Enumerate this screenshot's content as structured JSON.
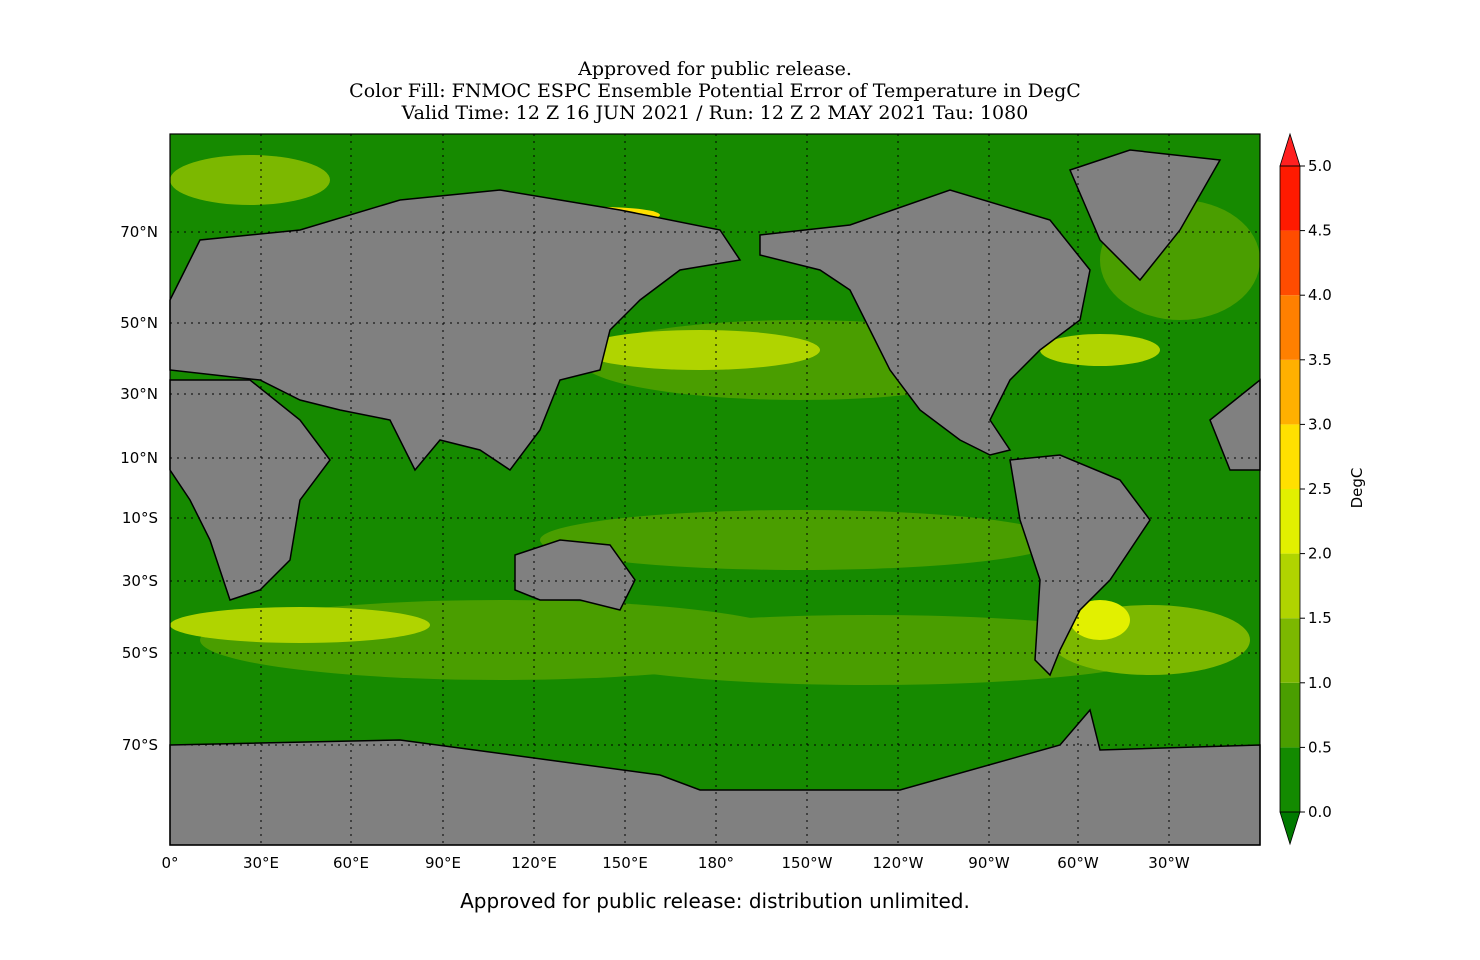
{
  "title": [
    "Approved for public release.",
    "Color Fill: FNMOC ESPC Ensemble Potential Error of Temperature in DegC",
    "Valid Time: 12 Z 16 JUN 2021 / Run: 12 Z 2 MAY 2021 Tau: 1080"
  ],
  "map": {
    "xticks": [
      "0°",
      "30°E",
      "60°E",
      "90°E",
      "120°E",
      "150°E",
      "180°",
      "150°W",
      "120°W",
      "90°W",
      "60°W",
      "30°W"
    ],
    "yticks": [
      "70°N",
      "50°N",
      "30°N",
      "10°N",
      "10°S",
      "30°S",
      "50°S",
      "70°S"
    ]
  },
  "colorbar": {
    "label": "DegC",
    "ylim": [
      0,
      5
    ],
    "ticks": [
      {
        "value": 0,
        "label": "0.0"
      },
      {
        "value": 0.5,
        "label": "0.5"
      },
      {
        "value": 1,
        "label": "1.0"
      },
      {
        "value": 1.5,
        "label": "1.5"
      },
      {
        "value": 2,
        "label": "2.0"
      },
      {
        "value": 2.5,
        "label": "2.5"
      },
      {
        "value": 3,
        "label": "3.0"
      },
      {
        "value": 3.5,
        "label": "3.5"
      },
      {
        "value": 4,
        "label": "4.0"
      },
      {
        "value": 4.5,
        "label": "4.5"
      },
      {
        "value": 5,
        "label": "5.0"
      }
    ],
    "colors": [
      "#138a00",
      "#4a9e00",
      "#7cb800",
      "#b0d400",
      "#e2f000",
      "#ffe000",
      "#ffb000",
      "#ff8000",
      "#ff4c00",
      "#ff1a00"
    ],
    "under_color": "#007a00",
    "over_color": "#ff2020"
  },
  "footer": "Approved for public release: distribution unlimited."
}
